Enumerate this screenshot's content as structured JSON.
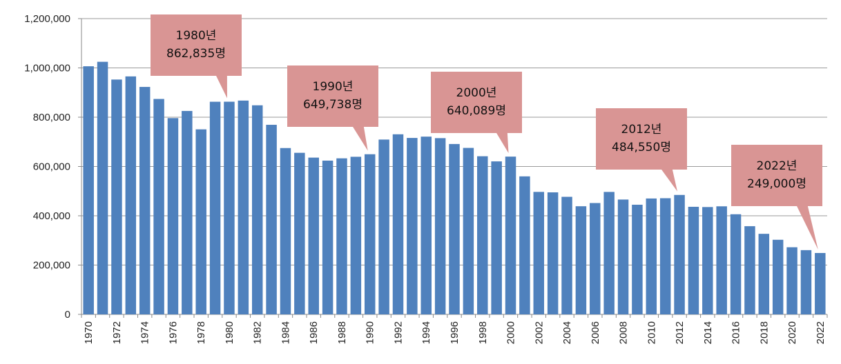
{
  "chart_data": {
    "type": "bar",
    "title": "",
    "xlabel": "",
    "ylabel": "",
    "ylim": [
      0,
      1200000
    ],
    "yticks": [
      "0",
      "200,000",
      "400,000",
      "600,000",
      "800,000",
      "1,000,000",
      "1,200,000"
    ],
    "ytick_values": [
      0,
      200000,
      400000,
      600000,
      800000,
      1000000,
      1200000
    ],
    "grid": true,
    "bar_color": "#4F81BD",
    "callout_color": "#D99594",
    "categories": [
      1970,
      1971,
      1972,
      1973,
      1974,
      1975,
      1976,
      1977,
      1978,
      1979,
      1980,
      1981,
      1982,
      1983,
      1984,
      1985,
      1986,
      1987,
      1988,
      1989,
      1990,
      1991,
      1992,
      1993,
      1994,
      1995,
      1996,
      1997,
      1998,
      1999,
      2000,
      2001,
      2002,
      2003,
      2004,
      2005,
      2006,
      2007,
      2008,
      2009,
      2010,
      2011,
      2012,
      2013,
      2014,
      2015,
      2016,
      2017,
      2018,
      2019,
      2020,
      2021,
      2022
    ],
    "xtick_labels": [
      "1970",
      "1972",
      "1974",
      "1976",
      "1978",
      "1980",
      "1982",
      "1984",
      "1986",
      "1988",
      "1990",
      "1992",
      "1994",
      "1996",
      "1998",
      "2000",
      "2002",
      "2004",
      "2006",
      "2008",
      "2010",
      "2012",
      "2014",
      "2016",
      "2018",
      "2020",
      "2022"
    ],
    "values": [
      1006645,
      1024773,
      952780,
      965521,
      922823,
      874030,
      796331,
      825339,
      750728,
      862669,
      862835,
      867409,
      848312,
      769155,
      674793,
      655489,
      636019,
      623831,
      633092,
      639431,
      649738,
      709275,
      730678,
      715826,
      721185,
      715020,
      691226,
      675394,
      641594,
      620668,
      640089,
      559934,
      496911,
      495036,
      476958,
      438707,
      451759,
      496822,
      465892,
      444849,
      470171,
      471265,
      484550,
      436455,
      435435,
      438420,
      406243,
      357771,
      326822,
      302676,
      272337,
      260562,
      249000
    ],
    "annotations": [
      {
        "year": 1980,
        "line1": "1980년",
        "line2": "862,835명"
      },
      {
        "year": 1990,
        "line1": "1990년",
        "line2": "649,738명"
      },
      {
        "year": 2000,
        "line1": "2000년",
        "line2": "640,089명"
      },
      {
        "year": 2012,
        "line1": "2012년",
        "line2": "484,550명"
      },
      {
        "year": 2022,
        "line1": "2022년",
        "line2": "249,000명"
      }
    ]
  }
}
